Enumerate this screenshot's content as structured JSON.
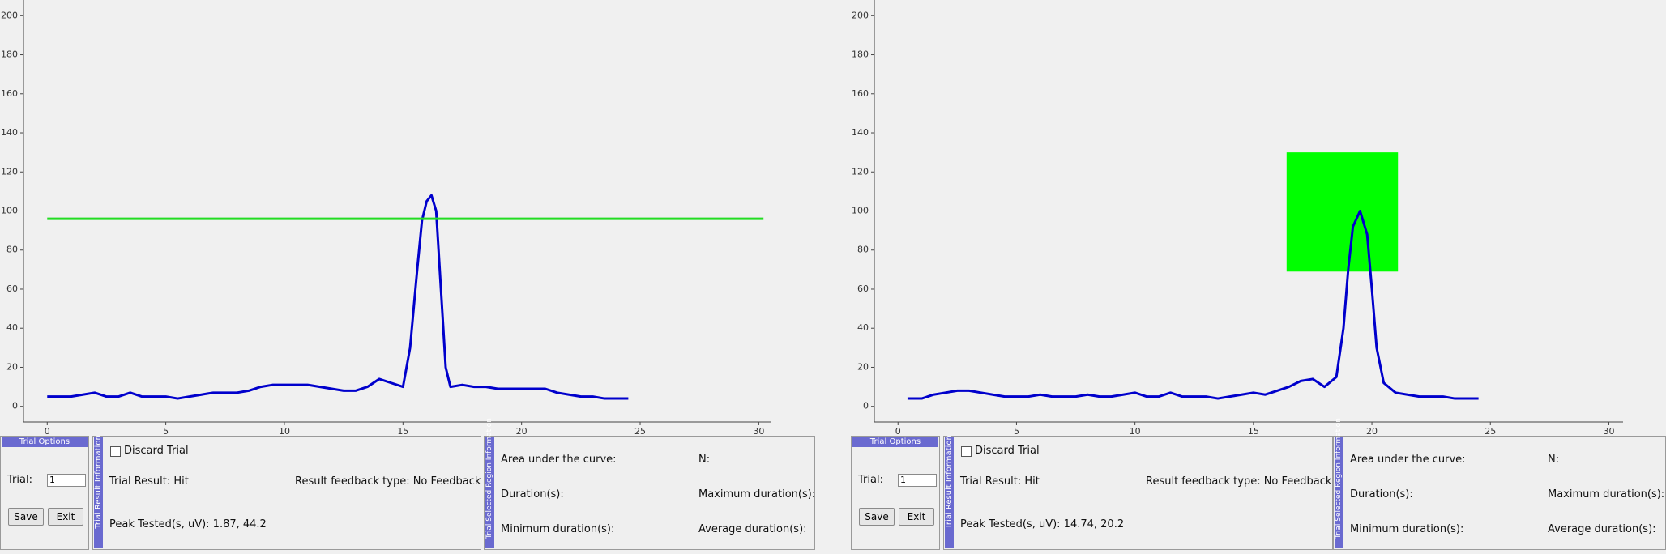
{
  "chart_data": [
    {
      "type": "line",
      "xlim": [
        -1,
        30.5
      ],
      "ylim": [
        -8,
        208
      ],
      "xticks": [
        0,
        5,
        10,
        15,
        20,
        25,
        30
      ],
      "yticks": [
        0,
        20,
        40,
        60,
        80,
        100,
        120,
        140,
        160,
        180,
        200
      ],
      "x": [
        0,
        0.5,
        1,
        1.5,
        2,
        2.5,
        3,
        3.5,
        4,
        4.5,
        5,
        5.5,
        6,
        6.5,
        7,
        7.5,
        8,
        8.5,
        9,
        9.5,
        10,
        10.5,
        11,
        11.5,
        12,
        12.5,
        13,
        13.5,
        14,
        14.5,
        15,
        15.3,
        15.6,
        15.8,
        16,
        16.2,
        16.4,
        16.6,
        16.8,
        17,
        17.5,
        18,
        18.5,
        19,
        19.5,
        20,
        20.5,
        21,
        21.5,
        22,
        22.5,
        23,
        23.5,
        24,
        24.5
      ],
      "series": [
        {
          "color": "#0000cc",
          "values": [
            5,
            5,
            5,
            6,
            7,
            5,
            5,
            7,
            5,
            5,
            5,
            4,
            5,
            6,
            7,
            7,
            7,
            8,
            10,
            11,
            11,
            11,
            11,
            10,
            9,
            8,
            8,
            10,
            14,
            12,
            10,
            30,
            70,
            95,
            105,
            108,
            100,
            60,
            20,
            10,
            11,
            10,
            10,
            9,
            9,
            9,
            9,
            9,
            7,
            6,
            5,
            5,
            4,
            4,
            4
          ]
        }
      ],
      "hline": {
        "value": 96,
        "x": [
          0,
          30.2
        ],
        "color": "#22dd22"
      }
    },
    {
      "type": "line",
      "xlim": [
        -1,
        30.6
      ],
      "ylim": [
        -8,
        208
      ],
      "xticks": [
        0,
        5,
        10,
        15,
        20,
        25,
        30
      ],
      "yticks": [
        0,
        20,
        40,
        60,
        80,
        100,
        120,
        140,
        160,
        180,
        200
      ],
      "x": [
        0.4,
        1,
        1.5,
        2,
        2.5,
        3,
        3.5,
        4,
        4.5,
        5,
        5.5,
        6,
        6.5,
        7,
        7.5,
        8,
        8.5,
        9,
        9.5,
        10,
        10.5,
        11,
        11.5,
        12,
        12.5,
        13,
        13.5,
        14,
        14.5,
        15,
        15.5,
        16,
        16.5,
        17,
        17.5,
        18,
        18.5,
        18.8,
        19,
        19.2,
        19.5,
        19.8,
        20,
        20.2,
        20.5,
        21,
        21.5,
        22,
        22.5,
        23,
        23.5,
        24,
        24.5
      ],
      "series": [
        {
          "color": "#0000cc",
          "values": [
            4,
            4,
            6,
            7,
            8,
            8,
            7,
            6,
            5,
            5,
            5,
            6,
            5,
            5,
            5,
            6,
            5,
            5,
            6,
            7,
            5,
            5,
            7,
            5,
            5,
            5,
            4,
            5,
            6,
            7,
            6,
            8,
            10,
            13,
            14,
            10,
            15,
            40,
            70,
            92,
            100,
            88,
            60,
            30,
            12,
            7,
            6,
            5,
            5,
            5,
            4,
            4,
            4
          ]
        }
      ],
      "rect": {
        "x": [
          16.4,
          21.1
        ],
        "y": [
          69,
          130
        ],
        "color": "#00ff00"
      }
    }
  ],
  "panels": [
    {
      "trial_options": {
        "title": "Trial Options",
        "trial_label": "Trial:",
        "trial_value": "1",
        "save": "Save",
        "exit": "Exit"
      },
      "trial_result": {
        "title": "Trial Result Information",
        "discard": "Discard Trial",
        "result": "Trial Result: Hit",
        "feedback": "Result feedback type: No Feedback",
        "peak": "Peak Tested(s, uV): 1.87, 44.2"
      },
      "region": {
        "title": "Trial Selected Region Information",
        "area": "Area under the curve:",
        "n": "N:",
        "duration": "Duration(s):",
        "max_duration": "Maximum duration(s):",
        "min_duration": "Minimum duration(s):",
        "avg_duration": "Average duration(s):"
      }
    },
    {
      "trial_options": {
        "title": "Trial Options",
        "trial_label": "Trial:",
        "trial_value": "1",
        "save": "Save",
        "exit": "Exit"
      },
      "trial_result": {
        "title": "Trial Result Information",
        "discard": "Discard Trial",
        "result": "Trial Result: Hit",
        "feedback": "Result feedback type: No Feedback",
        "peak": "Peak Tested(s, uV): 14.74, 20.2"
      },
      "region": {
        "title": "Trial Selected Region Information",
        "area": "Area under the curve:",
        "n": "N:",
        "duration": "Duration(s):",
        "max_duration": "Maximum duration(s):",
        "min_duration": "Minimum duration(s):",
        "avg_duration": "Average duration(s):"
      }
    }
  ]
}
